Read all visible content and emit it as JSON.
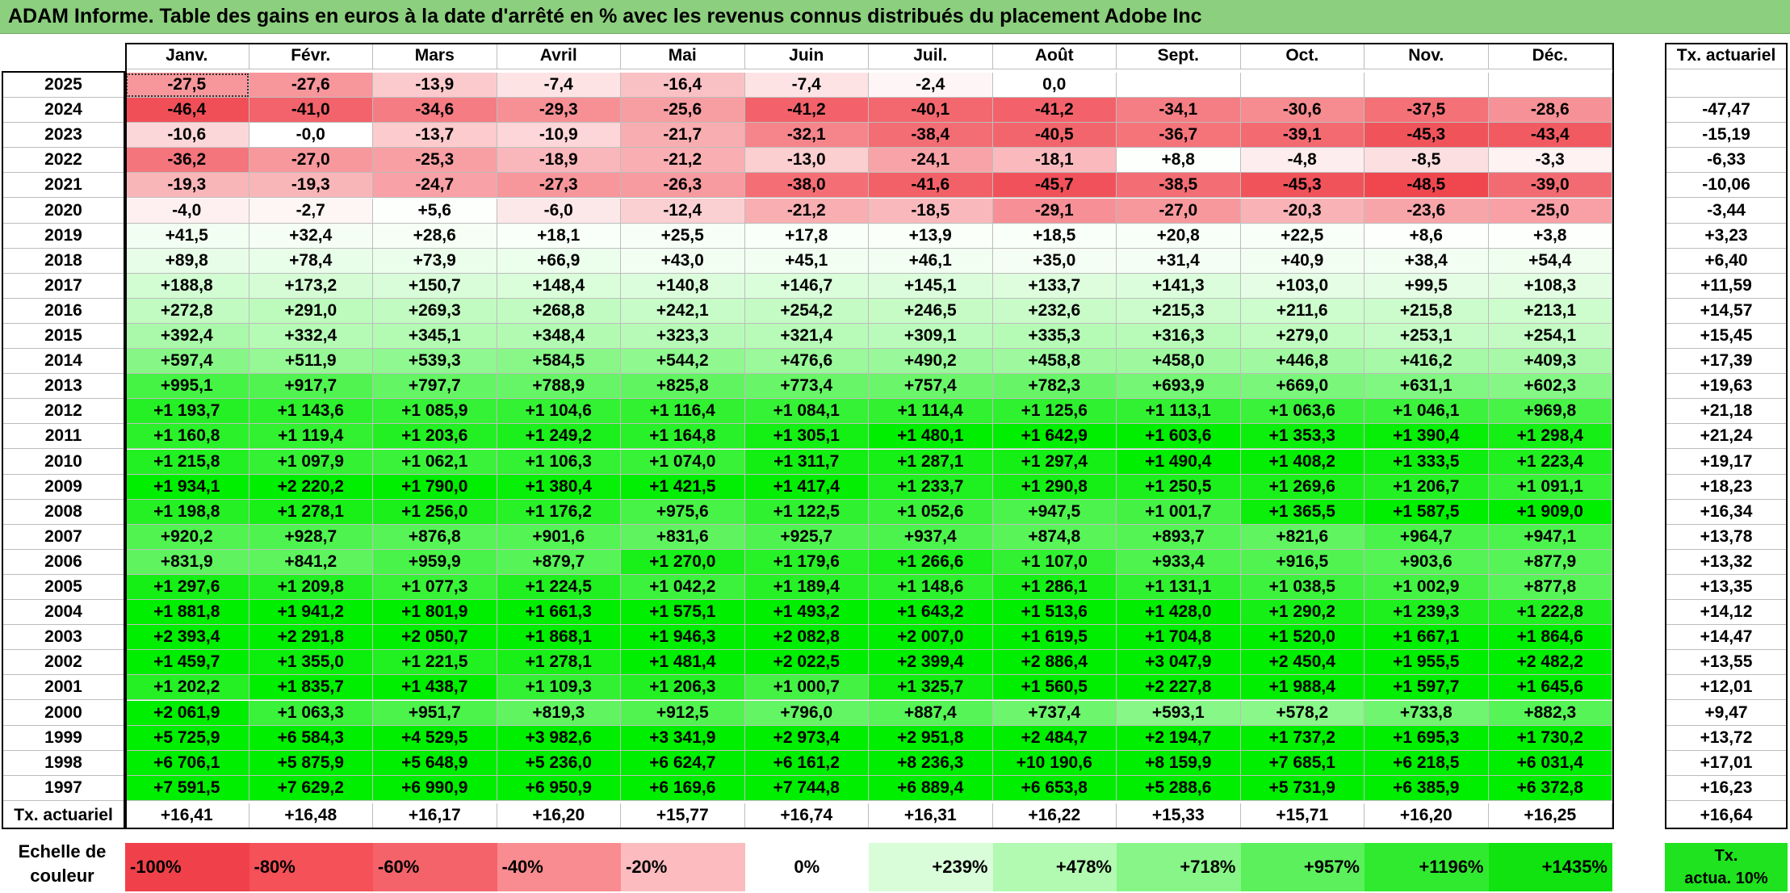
{
  "title": "ADAM Informe. Table des gains en euros à la date d'arrêté en % avec les revenus connus distribués du placement Adobe Inc",
  "months": [
    "Janv.",
    "Févr.",
    "Mars",
    "Avril",
    "Mai",
    "Juin",
    "Juil.",
    "Août",
    "Sept.",
    "Oct.",
    "Nov.",
    "Déc."
  ],
  "actuarial_header": "Tx. actuariel",
  "colors": {
    "title_bg": "#8ccf7e",
    "negative_max": "#f0414a",
    "zero": "#ffffff",
    "positive_max": "#00ee00"
  },
  "chart_data": {
    "type": "heatmap",
    "title": "ADAM Informe. Table des gains en euros à la date d'arrêté en % avec les revenus connus distribués du placement Adobe Inc",
    "x_categories": [
      "Janv.",
      "Févr.",
      "Mars",
      "Avril",
      "Mai",
      "Juin",
      "Juil.",
      "Août",
      "Sept.",
      "Oct.",
      "Nov.",
      "Déc."
    ],
    "rows": [
      {
        "year": "2025",
        "values": [
          "-27,5",
          "-27,6",
          "-13,9",
          "-7,4",
          "-16,4",
          "-7,4",
          "-2,4",
          "0,0",
          "",
          "",
          "",
          ""
        ],
        "actuarial": ""
      },
      {
        "year": "2024",
        "values": [
          "-46,4",
          "-41,0",
          "-34,6",
          "-29,3",
          "-25,6",
          "-41,2",
          "-40,1",
          "-41,2",
          "-34,1",
          "-30,6",
          "-37,5",
          "-28,6"
        ],
        "actuarial": "-47,47"
      },
      {
        "year": "2023",
        "values": [
          "-10,6",
          "-0,0",
          "-13,7",
          "-10,9",
          "-21,7",
          "-32,1",
          "-38,4",
          "-40,5",
          "-36,7",
          "-39,1",
          "-45,3",
          "-43,4"
        ],
        "actuarial": "-15,19"
      },
      {
        "year": "2022",
        "values": [
          "-36,2",
          "-27,0",
          "-25,3",
          "-18,9",
          "-21,2",
          "-13,0",
          "-24,1",
          "-18,1",
          "+8,8",
          "-4,8",
          "-8,5",
          "-3,3"
        ],
        "actuarial": "-6,33"
      },
      {
        "year": "2021",
        "values": [
          "-19,3",
          "-19,3",
          "-24,7",
          "-27,3",
          "-26,3",
          "-38,0",
          "-41,6",
          "-45,7",
          "-38,5",
          "-45,3",
          "-48,5",
          "-39,0"
        ],
        "actuarial": "-10,06"
      },
      {
        "year": "2020",
        "values": [
          "-4,0",
          "-2,7",
          "+5,6",
          "-6,0",
          "-12,4",
          "-21,2",
          "-18,5",
          "-29,1",
          "-27,0",
          "-20,3",
          "-23,6",
          "-25,0"
        ],
        "actuarial": "-3,44"
      },
      {
        "year": "2019",
        "values": [
          "+41,5",
          "+32,4",
          "+28,6",
          "+18,1",
          "+25,5",
          "+17,8",
          "+13,9",
          "+18,5",
          "+20,8",
          "+22,5",
          "+8,6",
          "+3,8"
        ],
        "actuarial": "+3,23"
      },
      {
        "year": "2018",
        "values": [
          "+89,8",
          "+78,4",
          "+73,9",
          "+66,9",
          "+43,0",
          "+45,1",
          "+46,1",
          "+35,0",
          "+31,4",
          "+40,9",
          "+38,4",
          "+54,4"
        ],
        "actuarial": "+6,40"
      },
      {
        "year": "2017",
        "values": [
          "+188,8",
          "+173,2",
          "+150,7",
          "+148,4",
          "+140,8",
          "+146,7",
          "+145,1",
          "+133,7",
          "+141,3",
          "+103,0",
          "+99,5",
          "+108,3"
        ],
        "actuarial": "+11,59"
      },
      {
        "year": "2016",
        "values": [
          "+272,8",
          "+291,0",
          "+269,3",
          "+268,8",
          "+242,1",
          "+254,2",
          "+246,5",
          "+232,6",
          "+215,3",
          "+211,6",
          "+215,8",
          "+213,1"
        ],
        "actuarial": "+14,57"
      },
      {
        "year": "2015",
        "values": [
          "+392,4",
          "+332,4",
          "+345,1",
          "+348,4",
          "+323,3",
          "+321,4",
          "+309,1",
          "+335,3",
          "+316,3",
          "+279,0",
          "+253,1",
          "+254,1"
        ],
        "actuarial": "+15,45"
      },
      {
        "year": "2014",
        "values": [
          "+597,4",
          "+511,9",
          "+539,3",
          "+584,5",
          "+544,2",
          "+476,6",
          "+490,2",
          "+458,8",
          "+458,0",
          "+446,8",
          "+416,2",
          "+409,3"
        ],
        "actuarial": "+17,39"
      },
      {
        "year": "2013",
        "values": [
          "+995,1",
          "+917,7",
          "+797,7",
          "+788,9",
          "+825,8",
          "+773,4",
          "+757,4",
          "+782,3",
          "+693,9",
          "+669,0",
          "+631,1",
          "+602,3"
        ],
        "actuarial": "+19,63"
      },
      {
        "year": "2012",
        "values": [
          "+1 193,7",
          "+1 143,6",
          "+1 085,9",
          "+1 104,6",
          "+1 116,4",
          "+1 084,1",
          "+1 114,4",
          "+1 125,6",
          "+1 113,1",
          "+1 063,6",
          "+1 046,1",
          "+969,8"
        ],
        "actuarial": "+21,18"
      },
      {
        "year": "2011",
        "values": [
          "+1 160,8",
          "+1 119,4",
          "+1 203,6",
          "+1 249,2",
          "+1 164,8",
          "+1 305,1",
          "+1 480,1",
          "+1 642,9",
          "+1 603,6",
          "+1 353,3",
          "+1 390,4",
          "+1 298,4"
        ],
        "actuarial": "+21,24"
      },
      {
        "year": "2010",
        "values": [
          "+1 215,8",
          "+1 097,9",
          "+1 062,1",
          "+1 106,3",
          "+1 074,0",
          "+1 311,7",
          "+1 287,1",
          "+1 297,4",
          "+1 490,4",
          "+1 408,2",
          "+1 333,5",
          "+1 223,4"
        ],
        "actuarial": "+19,17"
      },
      {
        "year": "2009",
        "values": [
          "+1 934,1",
          "+2 220,2",
          "+1 790,0",
          "+1 380,4",
          "+1 421,5",
          "+1 417,4",
          "+1 233,7",
          "+1 290,8",
          "+1 250,5",
          "+1 269,6",
          "+1 206,7",
          "+1 091,1"
        ],
        "actuarial": "+18,23"
      },
      {
        "year": "2008",
        "values": [
          "+1 198,8",
          "+1 278,1",
          "+1 256,0",
          "+1 176,2",
          "+975,6",
          "+1 122,5",
          "+1 052,6",
          "+947,5",
          "+1 001,7",
          "+1 365,5",
          "+1 587,5",
          "+1 909,0"
        ],
        "actuarial": "+16,34"
      },
      {
        "year": "2007",
        "values": [
          "+920,2",
          "+928,7",
          "+876,8",
          "+901,6",
          "+831,6",
          "+925,7",
          "+937,4",
          "+874,8",
          "+893,7",
          "+821,6",
          "+964,7",
          "+947,1"
        ],
        "actuarial": "+13,78"
      },
      {
        "year": "2006",
        "values": [
          "+831,9",
          "+841,2",
          "+959,9",
          "+879,7",
          "+1 270,0",
          "+1 179,6",
          "+1 266,6",
          "+1 107,0",
          "+933,4",
          "+916,5",
          "+903,6",
          "+877,9"
        ],
        "actuarial": "+13,32"
      },
      {
        "year": "2005",
        "values": [
          "+1 297,6",
          "+1 209,8",
          "+1 077,3",
          "+1 224,5",
          "+1 042,2",
          "+1 189,4",
          "+1 148,6",
          "+1 286,1",
          "+1 131,1",
          "+1 038,5",
          "+1 002,9",
          "+877,8"
        ],
        "actuarial": "+13,35"
      },
      {
        "year": "2004",
        "values": [
          "+1 881,8",
          "+1 941,2",
          "+1 801,9",
          "+1 661,3",
          "+1 575,1",
          "+1 493,2",
          "+1 643,2",
          "+1 513,6",
          "+1 428,0",
          "+1 290,2",
          "+1 239,3",
          "+1 222,8"
        ],
        "actuarial": "+14,12"
      },
      {
        "year": "2003",
        "values": [
          "+2 393,4",
          "+2 291,8",
          "+2 050,7",
          "+1 868,1",
          "+1 946,3",
          "+2 082,8",
          "+2 007,0",
          "+1 619,5",
          "+1 704,8",
          "+1 520,0",
          "+1 667,1",
          "+1 864,6"
        ],
        "actuarial": "+14,47"
      },
      {
        "year": "2002",
        "values": [
          "+1 459,7",
          "+1 355,0",
          "+1 221,5",
          "+1 278,1",
          "+1 481,4",
          "+2 022,5",
          "+2 399,4",
          "+2 886,4",
          "+3 047,9",
          "+2 450,4",
          "+1 955,5",
          "+2 482,2"
        ],
        "actuarial": "+13,55"
      },
      {
        "year": "2001",
        "values": [
          "+1 202,2",
          "+1 835,7",
          "+1 438,7",
          "+1 109,3",
          "+1 206,3",
          "+1 000,7",
          "+1 325,7",
          "+1 560,5",
          "+2 227,8",
          "+1 988,4",
          "+1 597,7",
          "+1 645,6"
        ],
        "actuarial": "+12,01"
      },
      {
        "year": "2000",
        "values": [
          "+2 061,9",
          "+1 063,3",
          "+951,7",
          "+819,3",
          "+912,5",
          "+796,0",
          "+887,4",
          "+737,4",
          "+593,1",
          "+578,2",
          "+733,8",
          "+882,3"
        ],
        "actuarial": "+9,47"
      },
      {
        "year": "1999",
        "values": [
          "+5 725,9",
          "+6 584,3",
          "+4 529,5",
          "+3 982,6",
          "+3 341,9",
          "+2 973,4",
          "+2 951,8",
          "+2 484,7",
          "+2 194,7",
          "+1 737,2",
          "+1 695,3",
          "+1 730,2"
        ],
        "actuarial": "+13,72"
      },
      {
        "year": "1998",
        "values": [
          "+6 706,1",
          "+5 875,9",
          "+5 648,9",
          "+5 236,0",
          "+6 624,7",
          "+6 161,2",
          "+8 236,3",
          "+10 190,6",
          "+8 159,9",
          "+7 685,1",
          "+6 218,5",
          "+6 031,4"
        ],
        "actuarial": "+17,01"
      },
      {
        "year": "1997",
        "values": [
          "+7 591,5",
          "+7 629,2",
          "+6 990,9",
          "+6 950,9",
          "+6 169,6",
          "+7 744,8",
          "+6 889,4",
          "+6 653,8",
          "+5 288,6",
          "+5 731,9",
          "+6 385,9",
          "+6 372,8"
        ],
        "actuarial": "+16,23"
      }
    ],
    "footer": {
      "label": "Tx. actuariel",
      "values": [
        "+16,41",
        "+16,48",
        "+16,17",
        "+16,20",
        "+15,77",
        "+16,74",
        "+16,31",
        "+16,22",
        "+15,33",
        "+15,71",
        "+16,20",
        "+16,25"
      ],
      "actuarial": "+16,64"
    },
    "legend": {
      "label": "Echelle de couleur",
      "steps": [
        {
          "text": "-100%",
          "color": "#f0414a"
        },
        {
          "text": "-80%",
          "color": "#f45158"
        },
        {
          "text": "-60%",
          "color": "#f5636a"
        },
        {
          "text": "-40%",
          "color": "#f98c90"
        },
        {
          "text": "-20%",
          "color": "#fcbcbf"
        },
        {
          "text": "0%",
          "color": "#ffffff"
        },
        {
          "text": "+239%",
          "color": "#d9fcd9"
        },
        {
          "text": "+478%",
          "color": "#b2f9b2"
        },
        {
          "text": "+718%",
          "color": "#88f588"
        },
        {
          "text": "+957%",
          "color": "#5cf05c"
        },
        {
          "text": "+1196%",
          "color": "#30ea30"
        },
        {
          "text": "+1435%",
          "color": "#11e311"
        }
      ],
      "actuarial_text": "Tx. actua. 10%",
      "actuarial_color": "#1ee31e"
    }
  }
}
